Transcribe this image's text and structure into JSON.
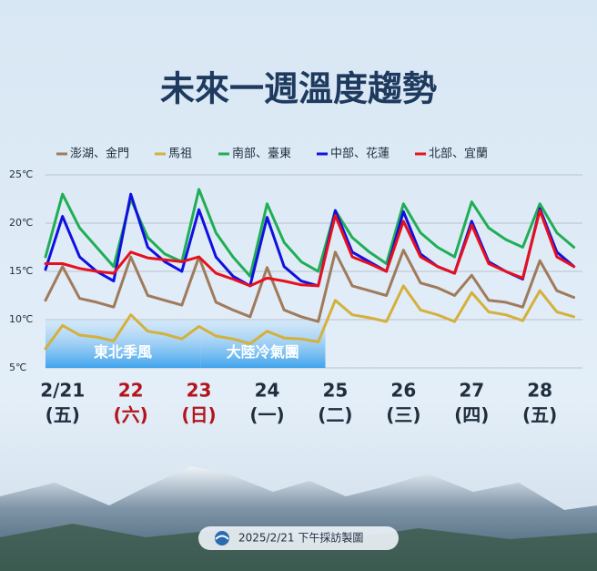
{
  "chart_data": {
    "type": "line",
    "title": "未來一週溫度趨勢",
    "x": [
      6,
      12,
      18,
      24,
      30,
      36,
      42,
      48,
      54,
      60,
      66,
      72,
      78,
      84,
      90,
      96,
      102,
      108,
      114,
      120,
      126,
      132,
      138,
      144,
      150,
      156,
      162,
      168,
      174,
      180,
      186,
      192
    ],
    "xlim": [
      6,
      195
    ],
    "xticks": [
      {
        "value": 12,
        "label": "2/21",
        "weekday": "(五)",
        "color": "#1f2d3d"
      },
      {
        "value": 36,
        "label": "22",
        "weekday": "(六)",
        "color": "#b3141c"
      },
      {
        "value": 60,
        "label": "23",
        "weekday": "(日)",
        "color": "#b3141c"
      },
      {
        "value": 84,
        "label": "24",
        "weekday": "(一)",
        "color": "#1f2d3d"
      },
      {
        "value": 108,
        "label": "25",
        "weekday": "(二)",
        "color": "#1f2d3d"
      },
      {
        "value": 132,
        "label": "26",
        "weekday": "(三)",
        "color": "#1f2d3d"
      },
      {
        "value": 156,
        "label": "27",
        "weekday": "(四)",
        "color": "#1f2d3d"
      },
      {
        "value": 180,
        "label": "28",
        "weekday": "(五)",
        "color": "#1f2d3d"
      }
    ],
    "ylim": [
      5,
      25
    ],
    "yticks": [
      {
        "value": 25,
        "label": "25℃"
      },
      {
        "value": 20,
        "label": "20℃"
      },
      {
        "value": 15,
        "label": "15℃"
      },
      {
        "value": 10,
        "label": "10℃"
      },
      {
        "value": 5,
        "label": "5℃"
      }
    ],
    "grid": true,
    "series": [
      {
        "name": "澎湖、金門",
        "color": "#a07a5a",
        "values": [
          12,
          15.5,
          12.2,
          11.8,
          11.3,
          16.5,
          12.5,
          12,
          11.5,
          16.5,
          11.8,
          11,
          10.3,
          15.4,
          11,
          10.3,
          9.8,
          17,
          13.5,
          13,
          12.5,
          17.2,
          13.8,
          13.3,
          12.5,
          14.6,
          12,
          11.8,
          11.3,
          16.1,
          13,
          12.3
        ]
      },
      {
        "name": "馬祖",
        "color": "#d4b03c",
        "values": [
          7,
          9.4,
          8.4,
          8.2,
          7.8,
          10.5,
          8.8,
          8.5,
          8,
          9.3,
          8.3,
          8,
          7.5,
          8.8,
          8.1,
          8,
          7.7,
          12,
          10.5,
          10.2,
          9.8,
          13.5,
          11,
          10.5,
          9.8,
          12.8,
          10.8,
          10.5,
          9.9,
          13,
          10.8,
          10.3
        ]
      },
      {
        "name": "南部、臺東",
        "color": "#1fae55",
        "values": [
          16.5,
          23,
          19.5,
          17.5,
          15.5,
          22.5,
          18.5,
          16.8,
          16,
          23.5,
          19,
          16.5,
          14.5,
          22,
          18,
          16,
          15,
          21.3,
          18.5,
          17,
          15.8,
          22,
          19,
          17.5,
          16.5,
          22.2,
          19.5,
          18.3,
          17.5,
          22,
          19,
          17.5
        ]
      },
      {
        "name": "中部、花蓮",
        "color": "#1010e0",
        "values": [
          15.2,
          20.7,
          16.5,
          15,
          14,
          23,
          17.5,
          16,
          15,
          21.4,
          16.5,
          14.5,
          13.5,
          20.6,
          15.5,
          14,
          13.5,
          21.3,
          17,
          16,
          15,
          21.2,
          16.8,
          15.5,
          14.8,
          20.2,
          16,
          15,
          14.2,
          21.5,
          17,
          15.5
        ]
      },
      {
        "name": "北部、宜蘭",
        "color": "#e8101c",
        "values": [
          15.8,
          15.8,
          15.3,
          15,
          14.8,
          17,
          16.4,
          16.2,
          16,
          16.5,
          14.8,
          14.2,
          13.5,
          14.3,
          14,
          13.6,
          13.5,
          20.8,
          16.5,
          15.8,
          15,
          20.2,
          16.5,
          15.5,
          14.8,
          19.8,
          15.8,
          15,
          14.3,
          21.3,
          16.5,
          15.5
        ]
      }
    ],
    "annotations": [
      {
        "text": "東北季風",
        "from": 6,
        "to": 60.5,
        "range": [
          5,
          10
        ]
      },
      {
        "text": "大陸冷氣團",
        "from": 60.5,
        "to": 104.5,
        "range": [
          5,
          10
        ]
      }
    ],
    "footer": "2025/2/21 下午採訪製圖"
  }
}
